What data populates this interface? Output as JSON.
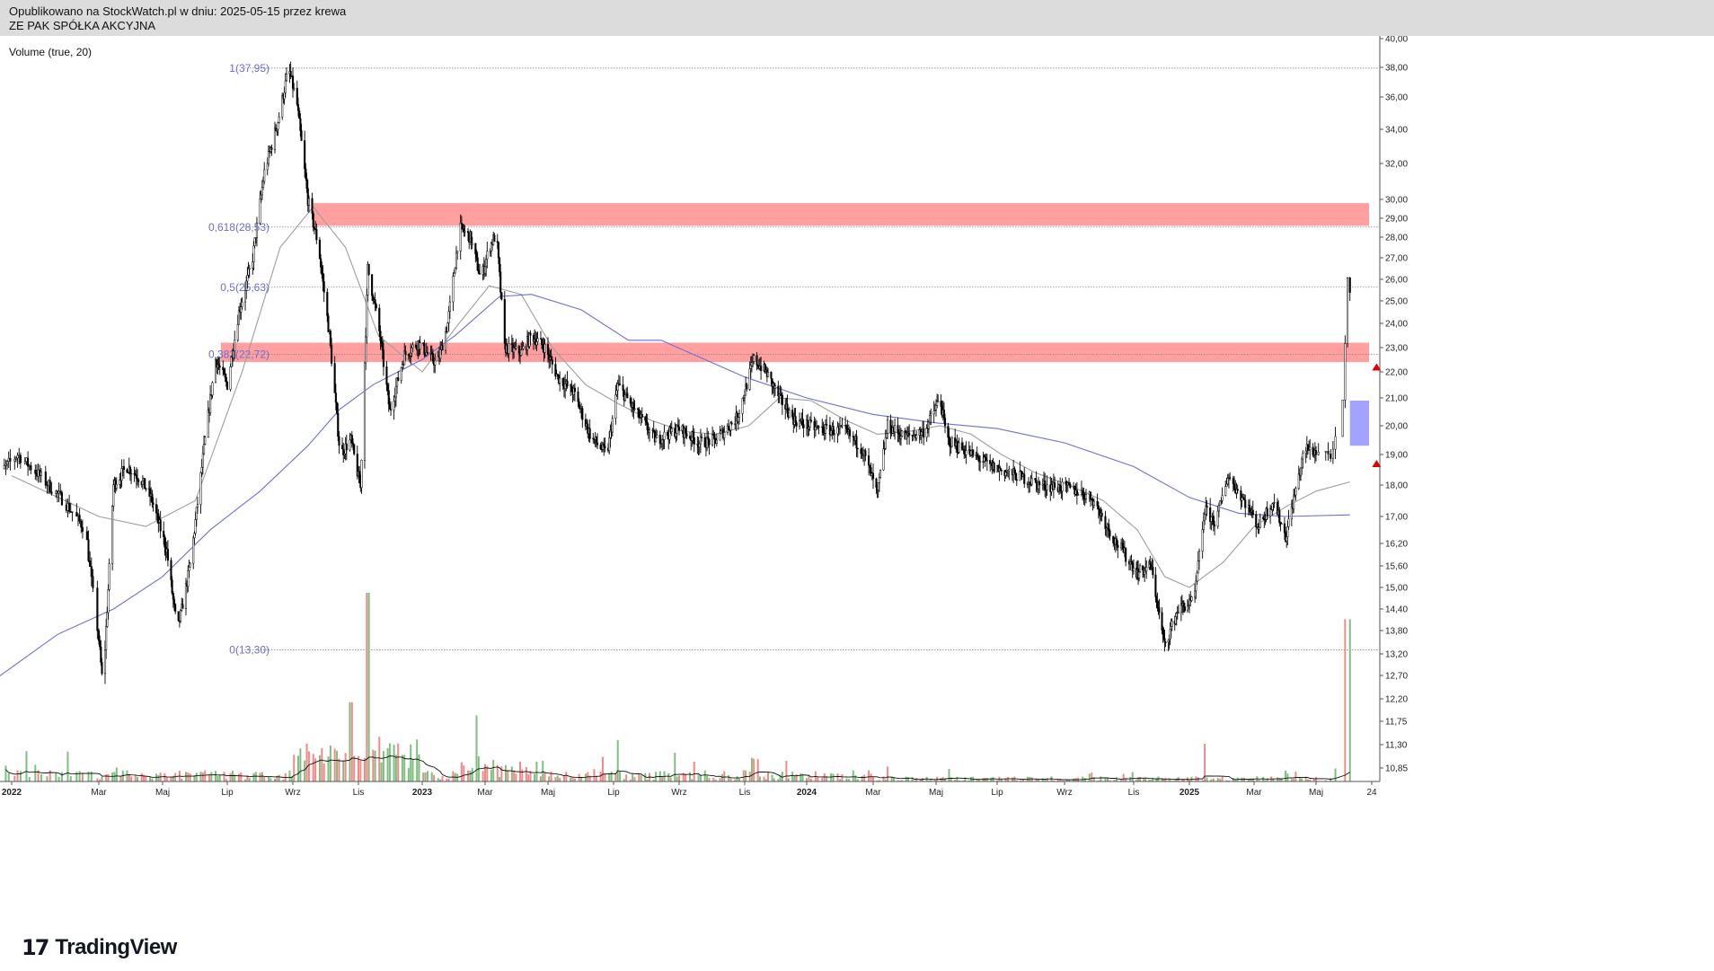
{
  "header": {
    "published": "Opublikowano na StockWatch.pl w dniu: 2025-05-15 przez krewa",
    "company": "ZE PAK SPÓŁKA AKCYJNA"
  },
  "volume_label": "Volume (true, 20)",
  "logo": {
    "mark": "17",
    "text": "TradingView"
  },
  "colors": {
    "candle": "#000000",
    "zone_red": "#ff9a9a",
    "zone_blue": "#9d9dff",
    "arrow": "#e00000",
    "ma_fast": "#9e9e9e",
    "ma_slow": "#6e6ed8",
    "fib": "#6b6bd6",
    "vol_up": "#7fbf7f",
    "vol_down": "#f08a8a"
  },
  "chart_data": {
    "type": "candlestick",
    "x_tick_labels": [
      "2022",
      "Mar",
      "Maj",
      "Lip",
      "Wrz",
      "Lis",
      "2023",
      "Mar",
      "Maj",
      "Lip",
      "Wrz",
      "Lis",
      "2024",
      "Mar",
      "Maj",
      "Lip",
      "Wrz",
      "Lis",
      "2025",
      "Mar",
      "Maj",
      "24"
    ],
    "x_tick_dates": [
      "2022-01-01",
      "2022-03-01",
      "2022-05-01",
      "2022-07-01",
      "2022-09-01",
      "2022-11-01",
      "2023-01-01",
      "2023-03-01",
      "2023-05-01",
      "2023-07-01",
      "2023-09-01",
      "2023-11-01",
      "2024-01-01",
      "2024-03-01",
      "2024-05-01",
      "2024-07-01",
      "2024-09-01",
      "2024-11-01",
      "2025-01-01",
      "2025-03-01",
      "2025-05-01",
      "2025-05-24"
    ],
    "y_axis_labels": [
      "40,00",
      "38,00",
      "36,00",
      "34,00",
      "32,00",
      "30,00",
      "29,00",
      "28,00",
      "27,00",
      "26,00",
      "25,00",
      "24,00",
      "23,00",
      "22,00",
      "21,00",
      "20,00",
      "19,00",
      "18,00",
      "17,00",
      "16,20",
      "15,60",
      "15,00",
      "14,40",
      "13,80",
      "13,20",
      "12,70",
      "12,20",
      "11,75",
      "11,30",
      "10,85"
    ],
    "y_axis_values": [
      40.0,
      38.0,
      36.0,
      34.0,
      32.0,
      30.0,
      29.0,
      28.0,
      27.0,
      26.0,
      25.0,
      24.0,
      23.0,
      22.0,
      21.0,
      20.0,
      19.0,
      18.0,
      17.0,
      16.2,
      15.6,
      15.0,
      14.4,
      13.8,
      13.2,
      12.7,
      12.2,
      11.75,
      11.3,
      10.85
    ],
    "y_scale": "log",
    "price_path": [
      [
        "2021-12-20",
        18.2
      ],
      [
        "2022-01-05",
        19.0
      ],
      [
        "2022-01-20",
        18.3
      ],
      [
        "2022-02-05",
        17.5
      ],
      [
        "2022-02-20",
        16.6
      ],
      [
        "2022-03-05",
        12.4
      ],
      [
        "2022-03-15",
        18.0
      ],
      [
        "2022-03-28",
        18.6
      ],
      [
        "2022-04-10",
        18.2
      ],
      [
        "2022-04-20",
        17.6
      ],
      [
        "2022-05-05",
        16.0
      ],
      [
        "2022-05-15",
        13.8
      ],
      [
        "2022-05-28",
        15.8
      ],
      [
        "2022-06-10",
        19.5
      ],
      [
        "2022-06-20",
        22.5
      ],
      [
        "2022-07-01",
        21.5
      ],
      [
        "2022-07-12",
        24.5
      ],
      [
        "2022-07-25",
        27.0
      ],
      [
        "2022-08-05",
        31.5
      ],
      [
        "2022-08-18",
        34.5
      ],
      [
        "2022-08-28",
        37.95
      ],
      [
        "2022-09-05",
        35.5
      ],
      [
        "2022-09-15",
        30.0
      ],
      [
        "2022-09-25",
        27.5
      ],
      [
        "2022-10-05",
        23.5
      ],
      [
        "2022-10-15",
        19.0
      ],
      [
        "2022-10-25",
        19.5
      ],
      [
        "2022-11-03",
        17.9
      ],
      [
        "2022-11-10",
        26.5
      ],
      [
        "2022-11-20",
        24.0
      ],
      [
        "2022-12-01",
        20.5
      ],
      [
        "2022-12-15",
        22.7
      ],
      [
        "2022-12-28",
        23.2
      ],
      [
        "2023-01-15",
        22.3
      ],
      [
        "2023-01-25",
        24.0
      ],
      [
        "2023-02-05",
        28.5
      ],
      [
        "2023-02-15",
        28.0
      ],
      [
        "2023-02-25",
        26.0
      ],
      [
        "2023-03-05",
        27.5
      ],
      [
        "2023-03-12",
        28.2
      ],
      [
        "2023-03-20",
        23.0
      ],
      [
        "2023-04-05",
        22.8
      ],
      [
        "2023-04-15",
        23.5
      ],
      [
        "2023-04-28",
        23.0
      ],
      [
        "2023-05-10",
        21.8
      ],
      [
        "2023-05-25",
        21.2
      ],
      [
        "2023-06-10",
        19.6
      ],
      [
        "2023-06-25",
        19.0
      ],
      [
        "2023-07-05",
        21.5
      ],
      [
        "2023-07-20",
        20.6
      ],
      [
        "2023-08-10",
        19.5
      ],
      [
        "2023-09-01",
        19.9
      ],
      [
        "2023-09-20",
        19.4
      ],
      [
        "2023-10-05",
        19.5
      ],
      [
        "2023-10-25",
        20.3
      ],
      [
        "2023-11-10",
        22.5
      ],
      [
        "2023-11-22",
        22.0
      ],
      [
        "2023-12-05",
        21.0
      ],
      [
        "2023-12-20",
        20.2
      ],
      [
        "2024-01-10",
        19.9
      ],
      [
        "2024-02-05",
        19.8
      ],
      [
        "2024-02-20",
        19.2
      ],
      [
        "2024-03-05",
        17.7
      ],
      [
        "2024-03-15",
        20.0
      ],
      [
        "2024-04-01",
        19.6
      ],
      [
        "2024-04-20",
        19.8
      ],
      [
        "2024-05-05",
        21.0
      ],
      [
        "2024-05-12",
        19.5
      ],
      [
        "2024-06-01",
        19.1
      ],
      [
        "2024-06-25",
        18.6
      ],
      [
        "2024-07-20",
        18.3
      ],
      [
        "2024-08-10",
        18.0
      ],
      [
        "2024-09-05",
        17.9
      ],
      [
        "2024-09-25",
        17.6
      ],
      [
        "2024-10-15",
        16.3
      ],
      [
        "2024-11-05",
        15.4
      ],
      [
        "2024-11-20",
        15.6
      ],
      [
        "2024-12-05",
        13.4
      ],
      [
        "2024-12-20",
        14.4
      ],
      [
        "2025-01-05",
        14.6
      ],
      [
        "2025-01-15",
        17.2
      ],
      [
        "2025-01-25",
        16.8
      ],
      [
        "2025-02-05",
        18.3
      ],
      [
        "2025-02-20",
        17.5
      ],
      [
        "2025-03-05",
        16.7
      ],
      [
        "2025-03-20",
        17.5
      ],
      [
        "2025-04-01",
        16.4
      ],
      [
        "2025-04-10",
        17.7
      ],
      [
        "2025-04-20",
        19.2
      ],
      [
        "2025-04-30",
        19.1
      ],
      [
        "2025-05-08",
        19.0
      ],
      [
        "2025-05-12",
        20.8
      ],
      [
        "2025-05-14",
        25.8
      ],
      [
        "2025-05-15",
        25.2
      ]
    ],
    "fibonacci": [
      {
        "label": "1(37,95)",
        "value": 37.95
      },
      {
        "label": "0,618(28,53)",
        "value": 28.53
      },
      {
        "label": "0,5(25,63)",
        "value": 25.63
      },
      {
        "label": "0,382(22,72)",
        "value": 22.72
      },
      {
        "label": "0(13,30)",
        "value": 13.3
      }
    ],
    "zones": [
      {
        "type": "resistance",
        "from_date": "2022-09-20",
        "to_date": "2025-06-10",
        "low": 28.6,
        "high": 29.8
      },
      {
        "type": "resistance",
        "from_date": "2022-06-25",
        "to_date": "2025-06-10",
        "low": 22.4,
        "high": 23.2
      },
      {
        "type": "target",
        "from_date": "2025-05-15",
        "to_date": "2025-06-10",
        "low": 19.3,
        "high": 20.9
      }
    ],
    "markers": [
      {
        "type": "arrow-up",
        "date": "2025-05-26",
        "value": 22.2
      },
      {
        "type": "arrow-up",
        "date": "2025-05-26",
        "value": 18.7
      }
    ],
    "moving_averages": [
      {
        "color": "#9e9e9e",
        "points": [
          [
            "2022-01-01",
            18.3
          ],
          [
            "2022-03-01",
            17.0
          ],
          [
            "2022-04-15",
            16.7
          ],
          [
            "2022-06-01",
            17.5
          ],
          [
            "2022-07-15",
            22.0
          ],
          [
            "2022-08-20",
            27.5
          ],
          [
            "2022-09-20",
            29.6
          ],
          [
            "2022-10-20",
            27.5
          ],
          [
            "2022-11-20",
            23.5
          ],
          [
            "2023-01-01",
            22.0
          ],
          [
            "2023-02-01",
            23.8
          ],
          [
            "2023-03-05",
            25.7
          ],
          [
            "2023-04-05",
            25.3
          ],
          [
            "2023-05-05",
            23.0
          ],
          [
            "2023-06-05",
            21.5
          ],
          [
            "2023-07-05",
            20.8
          ],
          [
            "2023-08-05",
            20.2
          ],
          [
            "2023-09-05",
            19.8
          ],
          [
            "2023-10-05",
            19.7
          ],
          [
            "2023-11-05",
            20.0
          ],
          [
            "2023-12-05",
            21.0
          ],
          [
            "2024-01-05",
            20.9
          ],
          [
            "2024-02-05",
            20.2
          ],
          [
            "2024-03-05",
            19.7
          ],
          [
            "2024-04-05",
            19.8
          ],
          [
            "2024-05-05",
            20.0
          ],
          [
            "2024-06-05",
            19.7
          ],
          [
            "2024-07-05",
            19.0
          ],
          [
            "2024-08-05",
            18.4
          ],
          [
            "2024-09-05",
            18.0
          ],
          [
            "2024-10-05",
            17.5
          ],
          [
            "2024-11-05",
            16.6
          ],
          [
            "2024-12-05",
            15.3
          ],
          [
            "2025-01-01",
            15.0
          ],
          [
            "2025-02-01",
            15.7
          ],
          [
            "2025-03-01",
            16.7
          ],
          [
            "2025-04-01",
            17.3
          ],
          [
            "2025-05-01",
            17.8
          ],
          [
            "2025-05-15",
            18.1
          ]
        ]
      },
      {
        "color": "#6e6ed8",
        "points": [
          [
            "2021-12-20",
            12.6
          ],
          [
            "2022-02-01",
            13.7
          ],
          [
            "2022-03-15",
            14.4
          ],
          [
            "2022-05-01",
            15.3
          ],
          [
            "2022-06-15",
            16.6
          ],
          [
            "2022-08-01",
            17.8
          ],
          [
            "2022-09-15",
            19.3
          ],
          [
            "2022-10-15",
            20.6
          ],
          [
            "2022-11-15",
            21.5
          ],
          [
            "2023-01-01",
            22.5
          ],
          [
            "2023-02-01",
            23.5
          ],
          [
            "2023-03-15",
            25.2
          ],
          [
            "2023-04-15",
            25.3
          ],
          [
            "2023-06-01",
            24.6
          ],
          [
            "2023-07-15",
            23.3
          ],
          [
            "2023-08-15",
            23.3
          ],
          [
            "2023-09-15",
            22.7
          ],
          [
            "2023-11-01",
            21.8
          ],
          [
            "2024-01-01",
            21.0
          ],
          [
            "2024-03-01",
            20.4
          ],
          [
            "2024-05-01",
            20.1
          ],
          [
            "2024-07-01",
            19.9
          ],
          [
            "2024-09-01",
            19.4
          ],
          [
            "2024-11-01",
            18.6
          ],
          [
            "2025-01-01",
            17.6
          ],
          [
            "2025-02-15",
            17.1
          ],
          [
            "2025-04-01",
            17.0
          ],
          [
            "2025-05-15",
            17.05
          ]
        ]
      }
    ],
    "volume_peaks": [
      [
        "2022-10-25",
        0.42
      ],
      [
        "2022-11-10",
        1.0
      ],
      [
        "2022-12-01",
        0.18
      ],
      [
        "2023-02-20",
        0.35
      ],
      [
        "2023-03-05",
        0.12
      ],
      [
        "2023-07-05",
        0.22
      ],
      [
        "2023-11-10",
        0.12
      ],
      [
        "2025-01-15",
        0.2
      ],
      [
        "2025-05-14",
        0.86
      ],
      [
        "2025-05-15",
        0.16
      ]
    ]
  }
}
